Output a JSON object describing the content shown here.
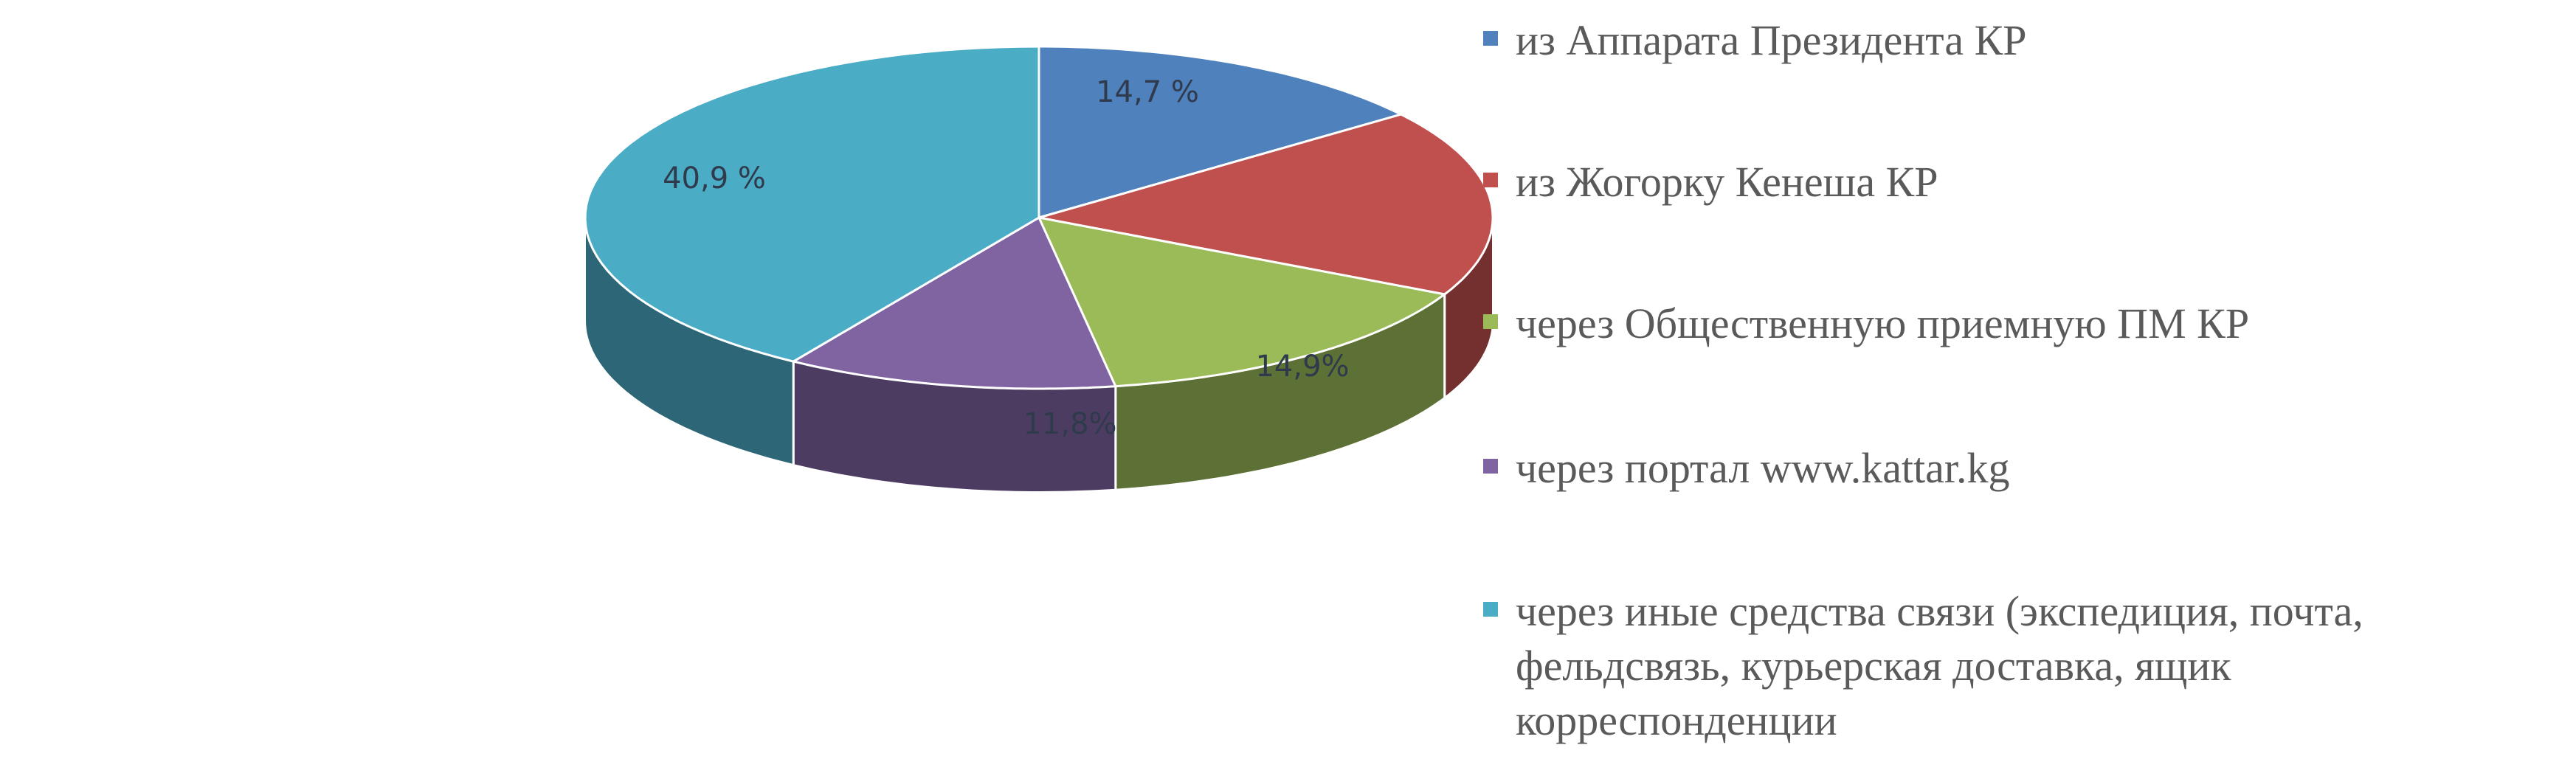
{
  "chart_data": {
    "type": "pie",
    "title": "",
    "style": "3d",
    "slices": [
      {
        "name": "из Аппарата Президента КР",
        "value": 14.7,
        "label": "14,7 %",
        "color": "#4f81bd"
      },
      {
        "name": "из Жогорку Кенеша КР",
        "value": 17.7,
        "label": "",
        "color": "#c0504d"
      },
      {
        "name": "через Общественную приемную ПМ КР",
        "value": 14.9,
        "label": "14,9%",
        "color": "#9bbb59"
      },
      {
        "name": "через портал www.kattar.kg",
        "value": 11.8,
        "label": "11,8%",
        "color": "#8064a2"
      },
      {
        "name": "через иные средства связи (экспедиция, почта,\nфельдсвязь, курьерская доставка, ящик\nкорреспонденции",
        "value": 40.9,
        "label": "40,9 %",
        "color": "#4bacc6"
      }
    ],
    "legend_position": "right"
  }
}
